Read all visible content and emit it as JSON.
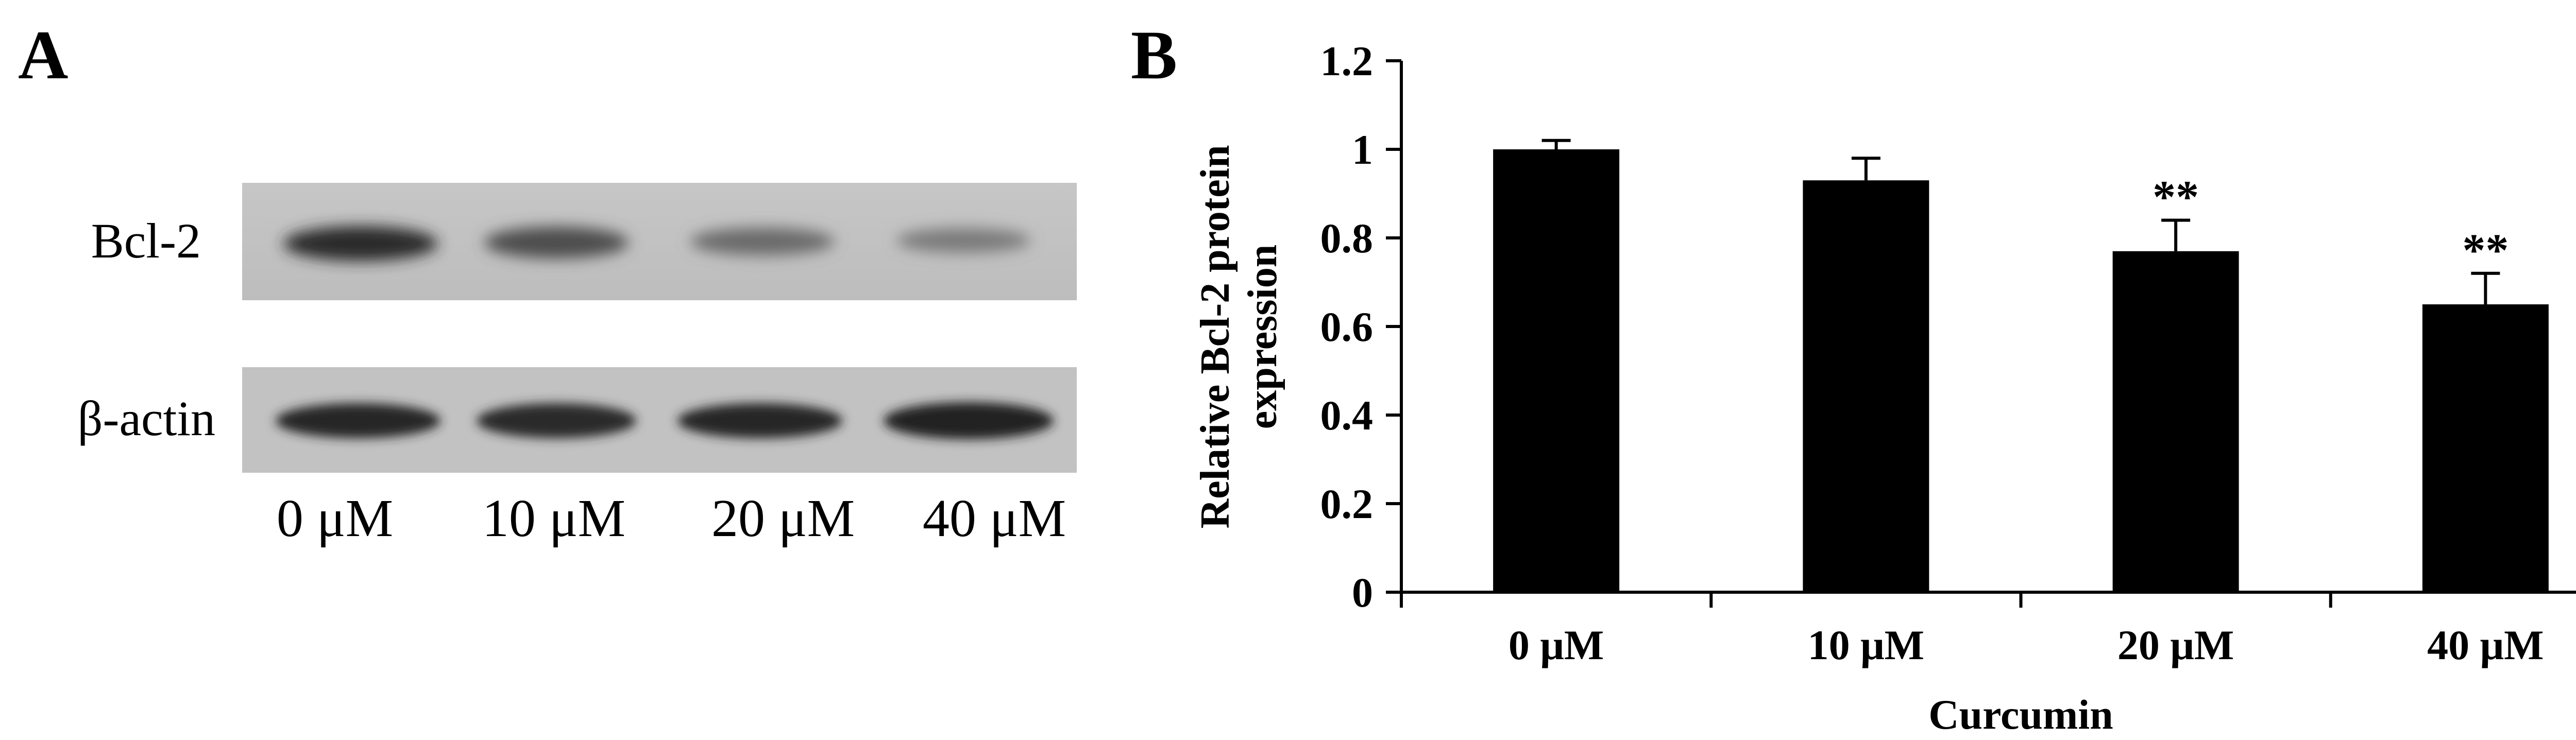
{
  "panel_a": {
    "letter": "A",
    "row_labels": [
      "Bcl-2",
      "β-actin"
    ],
    "lane_labels": [
      "0 μM",
      "10 μM",
      "20 μM",
      "40 μM"
    ]
  },
  "panel_b": {
    "letter": "B"
  },
  "chart_data": {
    "type": "bar",
    "categories": [
      "0 μM",
      "10 μM",
      "20 μM",
      "40 μM"
    ],
    "values": [
      1.0,
      0.93,
      0.77,
      0.65
    ],
    "errors": [
      0.02,
      0.05,
      0.07,
      0.07
    ],
    "annotations": [
      "",
      "",
      "**",
      "**"
    ],
    "xlabel": "Curcumin",
    "ylabel": "Relative Bcl-2 protein expression",
    "ylim": [
      0,
      1.2
    ],
    "yticks": [
      "0",
      "0.2",
      "0.4",
      "0.6",
      "0.8",
      "1",
      "1.2"
    ],
    "bar_color": "#000000",
    "grid": false,
    "legend": "none"
  }
}
